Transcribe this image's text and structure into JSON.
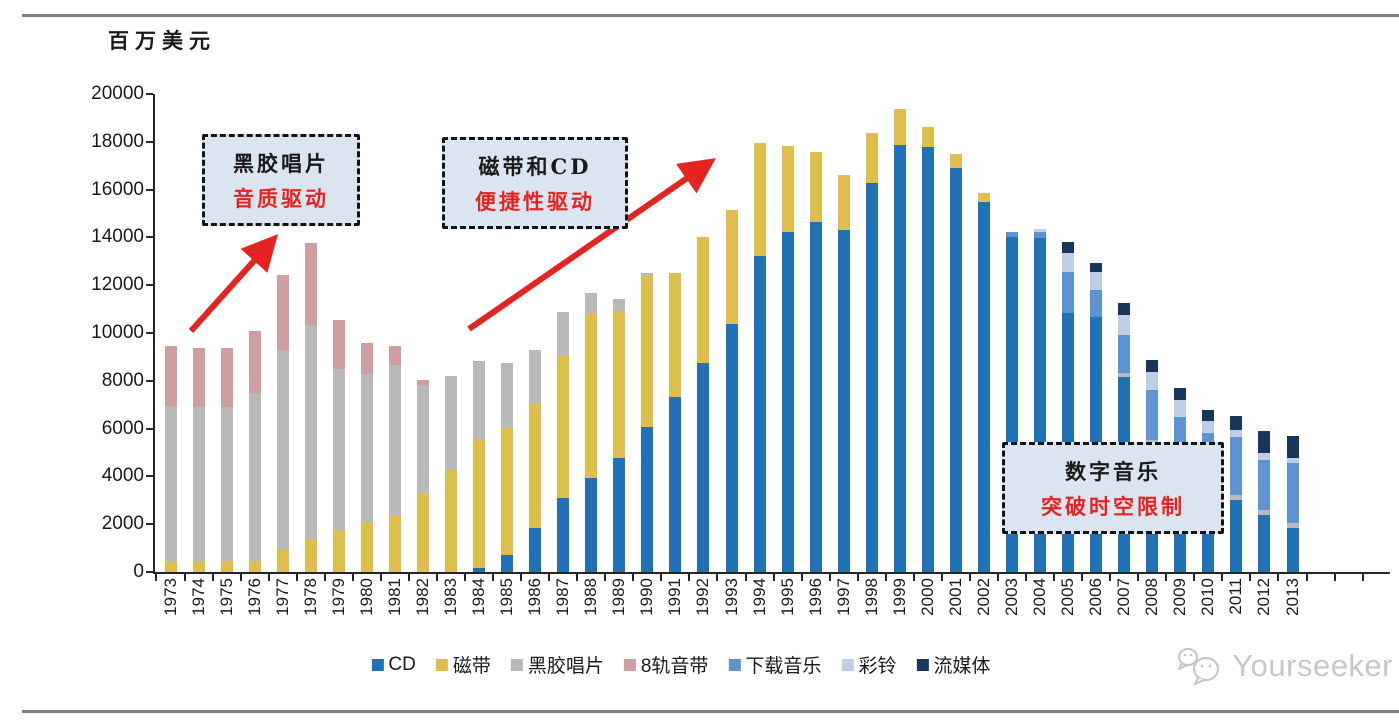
{
  "page": {
    "ylabel": "百万美元"
  },
  "chart_data": {
    "type": "bar",
    "subtype": "stacked-column",
    "title": "",
    "xlabel": "",
    "ylabel": "百万美元",
    "ylim": [
      0,
      20000
    ],
    "y_ticks": [
      0,
      2000,
      4000,
      6000,
      8000,
      10000,
      12000,
      14000,
      16000,
      18000,
      20000
    ],
    "grid": false,
    "legend_position": "bottom",
    "years": [
      1973,
      1974,
      1975,
      1976,
      1977,
      1978,
      1979,
      1980,
      1981,
      1982,
      1983,
      1984,
      1985,
      1986,
      1987,
      1988,
      1989,
      1990,
      1991,
      1992,
      1993,
      1994,
      1995,
      1996,
      1997,
      1998,
      1999,
      2000,
      2001,
      2002,
      2003,
      2004,
      2005,
      2006,
      2007,
      2008,
      2009,
      2010,
      2011,
      2012,
      2013
    ],
    "series": [
      {
        "key": "cd",
        "name": "CD",
        "color": "#2171b5",
        "values": [
          0,
          0,
          0,
          0,
          0,
          0,
          0,
          0,
          0,
          0,
          0,
          150,
          710,
          1850,
          3080,
          3920,
          4760,
          6080,
          7340,
          8730,
          10380,
          13220,
          14240,
          14660,
          14310,
          16260,
          17870,
          17770,
          16890,
          15470,
          14000,
          13960,
          10820,
          10680,
          8170,
          5310,
          4240,
          3630,
          3010,
          2390,
          1830
        ]
      },
      {
        "key": "cassette",
        "name": "磁带",
        "color": "#e0be4e",
        "values": [
          430,
          430,
          440,
          440,
          920,
          1340,
          1760,
          2100,
          2390,
          3290,
          4250,
          5370,
          5300,
          5160,
          5970,
          6900,
          6170,
          6320,
          5160,
          5300,
          4770,
          4730,
          3580,
          2930,
          2300,
          2090,
          1500,
          860,
          590,
          380,
          0,
          0,
          0,
          0,
          0,
          0,
          0,
          0,
          0,
          0,
          0
        ]
      },
      {
        "key": "vinyl",
        "name": "黑胶唱片",
        "color": "#b9b9b9",
        "values": [
          6530,
          6490,
          6450,
          7040,
          8370,
          9000,
          6720,
          6180,
          6280,
          4530,
          3950,
          3320,
          2720,
          2300,
          1840,
          840,
          480,
          100,
          0,
          0,
          0,
          0,
          0,
          0,
          0,
          0,
          0,
          0,
          0,
          0,
          0,
          0,
          0,
          0,
          140,
          210,
          170,
          140,
          210,
          210,
          210
        ]
      },
      {
        "key": "eight-track",
        "name": "8轨音带",
        "color": "#d09e9e",
        "values": [
          2500,
          2440,
          2470,
          2600,
          3140,
          3420,
          2060,
          1290,
          790,
          210,
          0,
          0,
          0,
          0,
          0,
          0,
          0,
          0,
          0,
          0,
          0,
          0,
          0,
          0,
          0,
          0,
          0,
          0,
          0,
          0,
          0,
          0,
          0,
          0,
          0,
          0,
          0,
          0,
          0,
          0,
          0
        ]
      },
      {
        "key": "download",
        "name": "下载音乐",
        "color": "#5e93d1",
        "values": [
          0,
          0,
          0,
          0,
          0,
          0,
          0,
          0,
          0,
          0,
          0,
          0,
          0,
          0,
          0,
          0,
          0,
          0,
          0,
          0,
          0,
          0,
          0,
          0,
          0,
          0,
          0,
          0,
          0,
          0,
          240,
          280,
          1740,
          1120,
          1600,
          2090,
          2090,
          2030,
          2440,
          2090,
          2510
        ]
      },
      {
        "key": "ringtone",
        "name": "彩铃",
        "color": "#bccfe6",
        "values": [
          0,
          0,
          0,
          0,
          0,
          0,
          0,
          0,
          0,
          0,
          0,
          0,
          0,
          0,
          0,
          0,
          0,
          0,
          0,
          0,
          0,
          0,
          0,
          0,
          0,
          0,
          0,
          0,
          0,
          0,
          0,
          100,
          780,
          770,
          840,
          770,
          700,
          530,
          280,
          280,
          210
        ]
      },
      {
        "key": "streaming",
        "name": "流媒体",
        "color": "#17375e",
        "values": [
          0,
          0,
          0,
          0,
          0,
          0,
          0,
          0,
          0,
          0,
          0,
          0,
          0,
          0,
          0,
          0,
          0,
          0,
          0,
          0,
          0,
          0,
          0,
          0,
          0,
          0,
          0,
          0,
          0,
          0,
          0,
          0,
          460,
          380,
          490,
          490,
          490,
          450,
          590,
          930,
          930
        ]
      }
    ]
  },
  "annotations": {
    "vinyl": {
      "line1": "黑胶唱片",
      "line2": "音质驱动"
    },
    "tape_cd": {
      "line1": "磁带和CD",
      "line2": "便捷性驱动"
    },
    "digital": {
      "line1": "数字音乐",
      "line2": "突破时空限制"
    }
  },
  "watermark": {
    "text": "Yourseeker"
  },
  "colors": {
    "accent_red": "#e52421",
    "callout_bg": "#dbe5f1",
    "rule_gray": "#7f7f7f"
  }
}
